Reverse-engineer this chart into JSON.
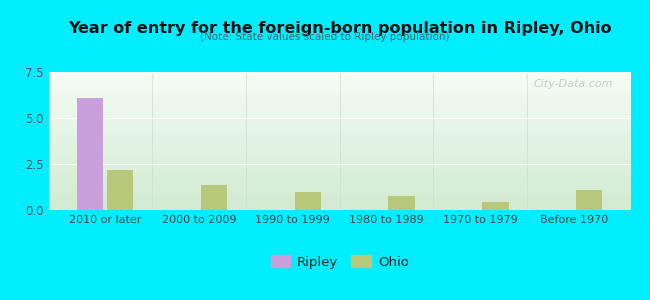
{
  "title": "Year of entry for the foreign-born population in Ripley, Ohio",
  "subtitle": "(Note: State values scaled to Ripley population)",
  "categories": [
    "2010 or later",
    "2000 to 2009",
    "1990 to 1999",
    "1980 to 1989",
    "1970 to 1979",
    "Before 1970"
  ],
  "ripley_values": [
    6.1,
    0,
    0,
    0,
    0,
    0
  ],
  "ohio_values": [
    2.2,
    1.35,
    1.0,
    0.75,
    0.45,
    1.1
  ],
  "ripley_color": "#c9a0dc",
  "ohio_color": "#b8c87a",
  "ylim": [
    0,
    7.5
  ],
  "yticks": [
    0,
    2.5,
    5,
    7.5
  ],
  "background_color": "#00eeff",
  "bar_width": 0.28,
  "legend_ripley": "Ripley",
  "legend_ohio": "Ohio",
  "watermark": "City-Data.com"
}
